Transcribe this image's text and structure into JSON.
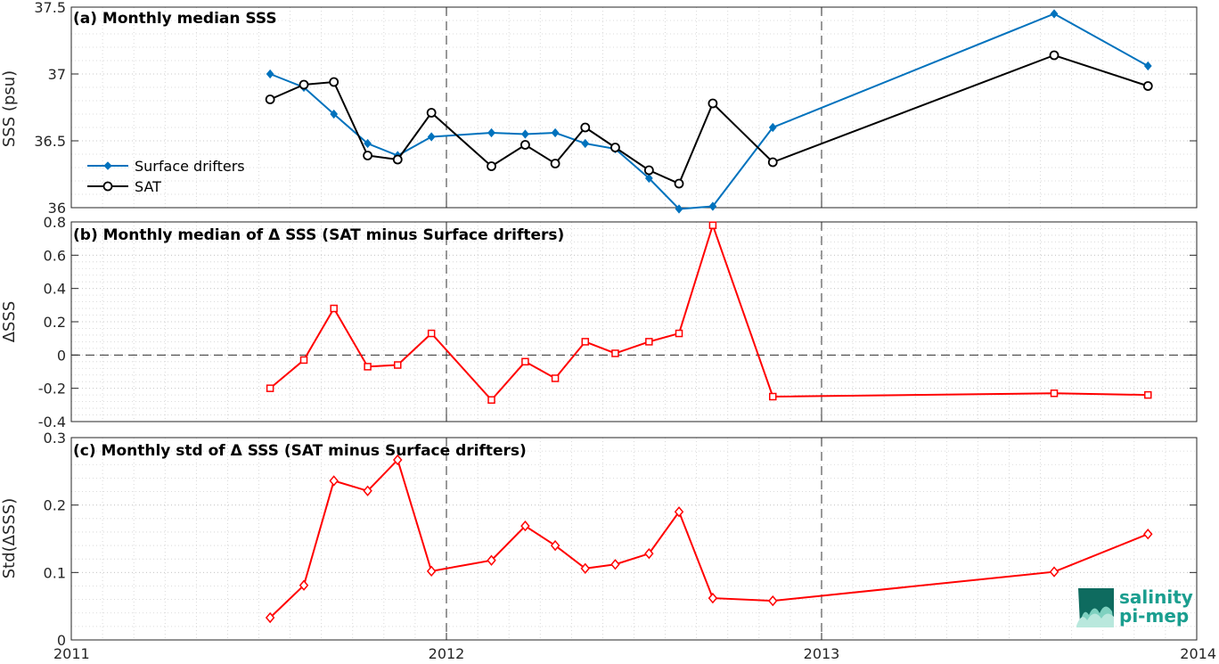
{
  "chart_data": [
    {
      "type": "line",
      "title": "(a) Monthly median SSS",
      "ylabel": "SSS (psu)",
      "ylim": [
        36.0,
        37.5
      ],
      "yticks": [
        36,
        36.5,
        37,
        37.5
      ],
      "ytick_labels": [
        "36",
        "36.5",
        "37",
        "37.5"
      ],
      "xlim": [
        2011.0,
        2014.0
      ],
      "grid": true,
      "legend_position": "left",
      "series": [
        {
          "name": "Surface drifters",
          "color": "#0072BD",
          "marker": "diamond",
          "x": [
            2011.53,
            2011.62,
            2011.7,
            2011.79,
            2011.87,
            2011.96,
            2012.12,
            2012.21,
            2012.29,
            2012.37,
            2012.45,
            2012.54,
            2012.62,
            2012.71,
            2012.87,
            2013.62,
            2013.87
          ],
          "values": [
            37.0,
            36.9,
            36.7,
            36.48,
            36.39,
            36.53,
            36.56,
            36.55,
            36.56,
            36.48,
            36.44,
            36.22,
            35.99,
            36.01,
            36.6,
            37.45,
            37.06
          ]
        },
        {
          "name": "SAT",
          "color": "#000000",
          "marker": "circle",
          "x": [
            2011.53,
            2011.62,
            2011.7,
            2011.79,
            2011.87,
            2011.96,
            2012.12,
            2012.21,
            2012.29,
            2012.37,
            2012.45,
            2012.54,
            2012.62,
            2012.71,
            2012.87,
            2013.62,
            2013.87
          ],
          "values": [
            36.81,
            36.92,
            36.94,
            36.39,
            36.36,
            36.71,
            36.31,
            36.47,
            36.33,
            36.6,
            36.45,
            36.28,
            36.18,
            36.78,
            36.34,
            37.14,
            36.91
          ]
        }
      ]
    },
    {
      "type": "line",
      "title": "(b) Monthly median of Δ SSS (SAT minus Surface drifters)",
      "ylabel": "ΔSSS",
      "ylim": [
        -0.4,
        0.8
      ],
      "yticks": [
        -0.4,
        -0.2,
        0,
        0.2,
        0.4,
        0.6,
        0.8
      ],
      "ytick_labels": [
        "-0.4",
        "-0.2",
        "0",
        "0.2",
        "0.4",
        "0.6",
        "0.8"
      ],
      "xlim": [
        2011.0,
        2014.0
      ],
      "grid": true,
      "zero_line": true,
      "series": [
        {
          "color": "#FF0000",
          "marker": "square",
          "x": [
            2011.53,
            2011.62,
            2011.7,
            2011.79,
            2011.87,
            2011.96,
            2012.12,
            2012.21,
            2012.29,
            2012.37,
            2012.45,
            2012.54,
            2012.62,
            2012.71,
            2012.87,
            2013.62,
            2013.87
          ],
          "values": [
            -0.2,
            -0.03,
            0.28,
            -0.07,
            -0.06,
            0.13,
            -0.27,
            -0.04,
            -0.14,
            0.08,
            0.01,
            0.08,
            0.13,
            0.78,
            -0.25,
            -0.23,
            -0.24
          ]
        }
      ]
    },
    {
      "type": "line",
      "title": "(c) Monthly std of Δ SSS (SAT minus Surface drifters)",
      "ylabel": "Std(ΔSSS)",
      "ylim": [
        0,
        0.3
      ],
      "yticks": [
        0,
        0.1,
        0.2,
        0.3
      ],
      "ytick_labels": [
        "0",
        "0.1",
        "0.2",
        "0.3"
      ],
      "xlim": [
        2011.0,
        2014.0
      ],
      "xticks": [
        2011,
        2012,
        2013,
        2014
      ],
      "xtick_labels": [
        "2011",
        "2012",
        "2013",
        "2014"
      ],
      "grid": true,
      "series": [
        {
          "color": "#FF0000",
          "marker": "diamond",
          "x": [
            2011.53,
            2011.62,
            2011.7,
            2011.79,
            2011.87,
            2011.96,
            2012.12,
            2012.21,
            2012.29,
            2012.37,
            2012.45,
            2012.54,
            2012.62,
            2012.71,
            2012.87,
            2013.62,
            2013.87
          ],
          "values": [
            0.033,
            0.081,
            0.236,
            0.221,
            0.267,
            0.102,
            0.118,
            0.169,
            0.14,
            0.106,
            0.112,
            0.128,
            0.19,
            0.062,
            0.058,
            0.101,
            0.157
          ]
        }
      ]
    }
  ],
  "logo": {
    "line1": "salinity",
    "line2": "pi-mep",
    "color": "#1a9e8f"
  }
}
